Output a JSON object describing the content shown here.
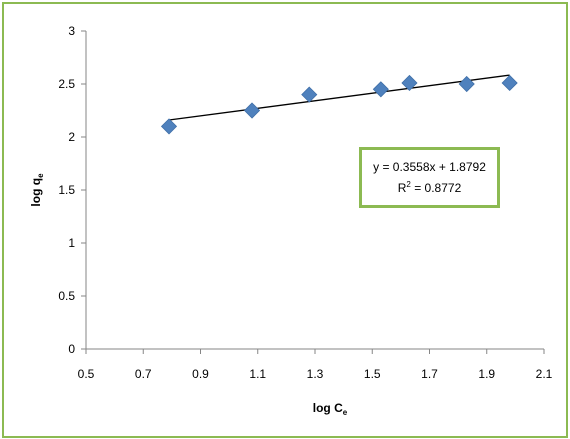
{
  "chart_data": {
    "type": "scatter",
    "xlabel": {
      "main": "log C",
      "sub": "e"
    },
    "ylabel": {
      "main": "log q",
      "sub": "e"
    },
    "xlim": [
      0.5,
      2.1
    ],
    "ylim": [
      0,
      3
    ],
    "x_ticks": [
      "0.5",
      "0.7",
      "0.9",
      "1.1",
      "1.3",
      "1.5",
      "1.7",
      "1.9",
      "2.1"
    ],
    "y_ticks": [
      "0",
      "0.5",
      "1",
      "1.5",
      "2",
      "2.5",
      "3"
    ],
    "grid": false,
    "points": [
      {
        "x": 0.79,
        "y": 2.1
      },
      {
        "x": 1.08,
        "y": 2.25
      },
      {
        "x": 1.28,
        "y": 2.4
      },
      {
        "x": 1.53,
        "y": 2.45
      },
      {
        "x": 1.63,
        "y": 2.51
      },
      {
        "x": 1.83,
        "y": 2.5
      },
      {
        "x": 1.98,
        "y": 2.51
      }
    ],
    "marker_color": "#4f81bd",
    "trendline": {
      "slope": 0.3558,
      "intercept": 1.8792,
      "x_range": [
        0.79,
        1.98
      ],
      "color": "#000000"
    },
    "annotation": {
      "equation": "y = 0.3558x + 1.8792",
      "r2_prefix": "R",
      "r2_sup": "2",
      "r2_value": " = 0.8772",
      "border_color": "#8cba52"
    }
  }
}
